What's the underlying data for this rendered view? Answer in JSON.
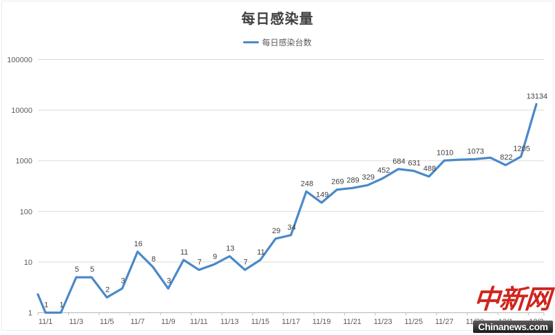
{
  "page": {
    "title": "每日感染量"
  },
  "legend": {
    "label": "每日感染台数",
    "line_color": "#4A89C8"
  },
  "watermark": {
    "logo_text": "中新网",
    "site_text": "Chinanews.com",
    "logo_color": "#d0241d",
    "bar_text_color": "#ffffff"
  },
  "chart_data": {
    "type": "line",
    "title": "每日感染量",
    "series_name": "每日感染台数",
    "y_scale": "log10",
    "ylim": [
      1,
      100000
    ],
    "grid": true,
    "legend_position": "top",
    "y_ticks": [
      "1",
      "10",
      "100",
      "1000",
      "10000",
      "100000"
    ],
    "x_tick_labels": [
      "11/1",
      "11/3",
      "11/5",
      "11/7",
      "11/9",
      "11/11",
      "11/13",
      "11/15",
      "11/17",
      "11/19",
      "11/21",
      "11/23",
      "11/25",
      "11/27",
      "11/29",
      "12/1",
      "12/3"
    ],
    "clipped_lead_in_value": 2.3,
    "line_color": "#4A89C8",
    "label_color": "#404040",
    "axis_text_color": "#595959",
    "gridline_color": "#D9D9D9",
    "axis_line_color": "#BFBFBF",
    "points": [
      {
        "date": "11/1",
        "value": 1,
        "label": "1"
      },
      {
        "date": "11/2",
        "value": 1,
        "label": "1"
      },
      {
        "date": "11/3",
        "value": 5,
        "label": "5"
      },
      {
        "date": "11/4",
        "value": 5,
        "label": "5"
      },
      {
        "date": "11/5",
        "value": 2,
        "label": "2"
      },
      {
        "date": "11/6",
        "value": 3,
        "label": "3"
      },
      {
        "date": "11/7",
        "value": 16,
        "label": "16"
      },
      {
        "date": "11/8",
        "value": 8,
        "label": "8"
      },
      {
        "date": "11/9",
        "value": 3,
        "label": "3"
      },
      {
        "date": "11/10",
        "value": 11,
        "label": "11"
      },
      {
        "date": "11/11",
        "value": 7,
        "label": "7"
      },
      {
        "date": "11/12",
        "value": 9,
        "label": "9"
      },
      {
        "date": "11/13",
        "value": 13,
        "label": "13"
      },
      {
        "date": "11/14",
        "value": 7,
        "label": "7"
      },
      {
        "date": "11/15",
        "value": 11,
        "label": "11"
      },
      {
        "date": "11/16",
        "value": 29,
        "label": "29"
      },
      {
        "date": "11/17",
        "value": 34,
        "label": "34"
      },
      {
        "date": "11/18",
        "value": 248,
        "label": "248"
      },
      {
        "date": "11/19",
        "value": 149,
        "label": "149"
      },
      {
        "date": "11/20",
        "value": 269,
        "label": "269"
      },
      {
        "date": "11/21",
        "value": 289,
        "label": "289"
      },
      {
        "date": "11/22",
        "value": 329,
        "label": "329"
      },
      {
        "date": "11/23",
        "value": 452,
        "label": "452"
      },
      {
        "date": "11/24",
        "value": 684,
        "label": "684"
      },
      {
        "date": "11/25",
        "value": 631,
        "label": "631"
      },
      {
        "date": "11/26",
        "value": 488,
        "label": "488"
      },
      {
        "date": "11/27",
        "value": 1010,
        "label": "1010"
      },
      {
        "date": "11/28",
        "value": 1050,
        "label": null,
        "estimated": true
      },
      {
        "date": "11/29",
        "value": 1073,
        "label": "1073"
      },
      {
        "date": "11/30",
        "value": 1150,
        "label": null,
        "estimated": true
      },
      {
        "date": "12/1",
        "value": 822,
        "label": "822"
      },
      {
        "date": "12/2",
        "value": 1205,
        "label": "1205"
      },
      {
        "date": "12/3",
        "value": 13134,
        "label": "13134"
      }
    ]
  }
}
